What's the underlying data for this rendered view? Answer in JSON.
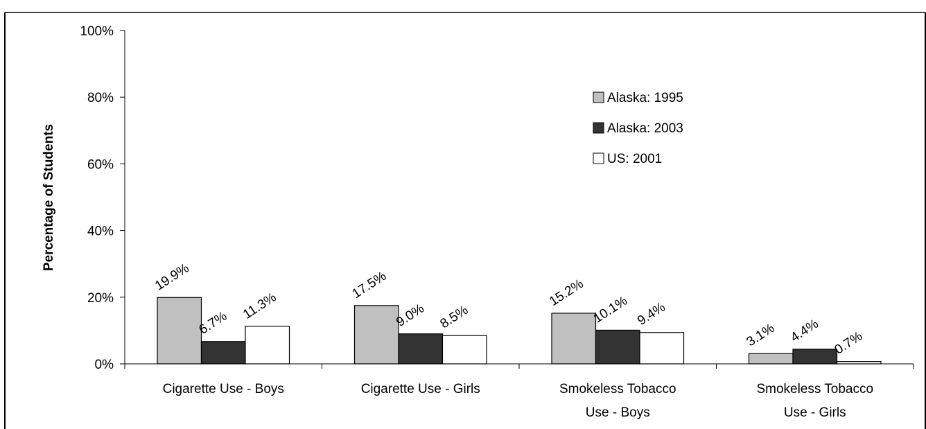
{
  "chart_data": {
    "type": "bar",
    "title": "",
    "xlabel": "",
    "ylabel": "Percentage of Students",
    "ylim": [
      0,
      100
    ],
    "yticks": [
      "0%",
      "20%",
      "40%",
      "60%",
      "80%",
      "100%"
    ],
    "categories": [
      [
        "Cigarette Use - Boys"
      ],
      [
        "Cigarette Use - Girls"
      ],
      [
        "Smokeless Tobacco",
        "Use - Boys"
      ],
      [
        "Smokeless Tobacco",
        "Use - Girls"
      ]
    ],
    "series": [
      {
        "name": "Alaska: 1995",
        "color": "#c0c0c0",
        "values": [
          19.9,
          17.5,
          15.2,
          3.1
        ],
        "labels": [
          "19.9%",
          "17.5%",
          "15.2%",
          "3.1%"
        ]
      },
      {
        "name": "Alaska: 2003",
        "color": "#333333",
        "values": [
          6.7,
          9.0,
          10.1,
          4.4
        ],
        "labels": [
          "6.7%",
          "9.0%",
          "10.1%",
          "4.4%"
        ]
      },
      {
        "name": "US: 2001",
        "color": "#ffffff",
        "values": [
          11.3,
          8.5,
          9.4,
          0.7
        ],
        "labels": [
          "11.3%",
          "8.5%",
          "9.4%",
          "0.7%"
        ]
      }
    ],
    "legend_position": "upper-right",
    "grid": false
  }
}
